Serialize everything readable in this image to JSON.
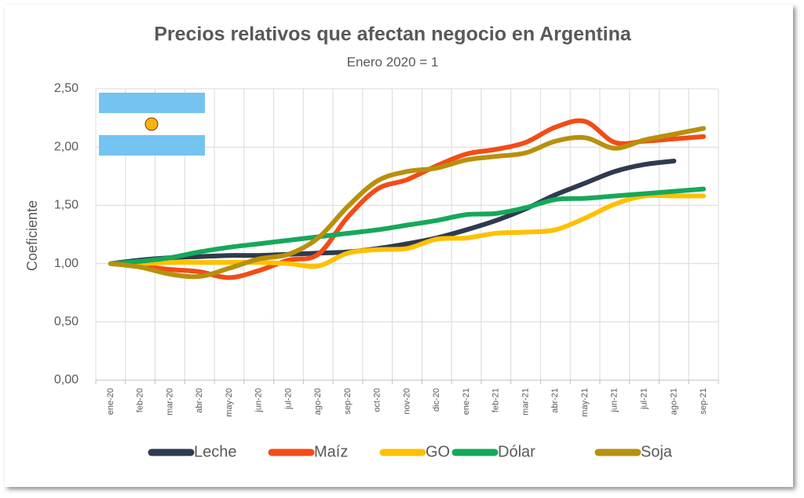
{
  "chart_data": {
    "type": "line",
    "title": "Precios relativos que afectan negocio en Argentina",
    "subtitle": "Enero 2020 = 1",
    "y_label": "Coeficiente",
    "categories": [
      "ene-20",
      "feb-20",
      "mar-20",
      "abr-20",
      "may-20",
      "jun-20",
      "jul-20",
      "ago-20",
      "sep-20",
      "oct-20",
      "nov-20",
      "dic-20",
      "ene-21",
      "feb-21",
      "mar-21",
      "abr-21",
      "may-21",
      "jun-21",
      "jul-21",
      "ago-21",
      "sep-21"
    ],
    "series": [
      {
        "name": "Leche",
        "color": "#2e3a4e",
        "values": [
          1.0,
          1.03,
          1.05,
          1.06,
          1.07,
          1.07,
          1.08,
          1.09,
          1.1,
          1.13,
          1.17,
          1.22,
          1.29,
          1.37,
          1.47,
          1.59,
          1.69,
          1.79,
          1.85,
          1.88,
          null
        ]
      },
      {
        "name": "Maíz",
        "color": "#f24c17",
        "values": [
          1.0,
          0.98,
          0.95,
          0.93,
          0.88,
          0.94,
          1.03,
          1.08,
          1.4,
          1.64,
          1.72,
          1.84,
          1.94,
          1.98,
          2.04,
          2.17,
          2.22,
          2.04,
          2.05,
          2.07,
          2.09
        ]
      },
      {
        "name": "GO",
        "color": "#ffc000",
        "values": [
          1.0,
          1.0,
          1.01,
          1.01,
          1.01,
          1.01,
          1.0,
          0.98,
          1.09,
          1.12,
          1.13,
          1.21,
          1.22,
          1.26,
          1.27,
          1.29,
          1.39,
          1.51,
          1.58,
          1.58,
          1.58
        ]
      },
      {
        "name": "Dólar",
        "color": "#16a85a",
        "values": [
          1.0,
          1.02,
          1.05,
          1.1,
          1.14,
          1.17,
          1.2,
          1.23,
          1.26,
          1.29,
          1.33,
          1.37,
          1.42,
          1.43,
          1.48,
          1.55,
          1.56,
          1.58,
          1.6,
          1.62,
          1.64
        ]
      },
      {
        "name": "Soja",
        "color": "#b8900c",
        "values": [
          1.0,
          0.97,
          0.91,
          0.89,
          0.96,
          1.04,
          1.08,
          1.22,
          1.49,
          1.71,
          1.79,
          1.82,
          1.89,
          1.92,
          1.95,
          2.05,
          2.08,
          1.99,
          2.06,
          2.11,
          2.16
        ]
      }
    ],
    "ylim": [
      0,
      2.5
    ],
    "yticks": [
      {
        "value": 0,
        "label": "0,00"
      },
      {
        "value": 0.5,
        "label": "0,50"
      },
      {
        "value": 1,
        "label": "1,00"
      },
      {
        "value": 1.5,
        "label": "1,50"
      },
      {
        "value": 2,
        "label": "2,00"
      },
      {
        "value": 2.5,
        "label": "2,50"
      }
    ],
    "grid": true,
    "legend": "bottom"
  }
}
